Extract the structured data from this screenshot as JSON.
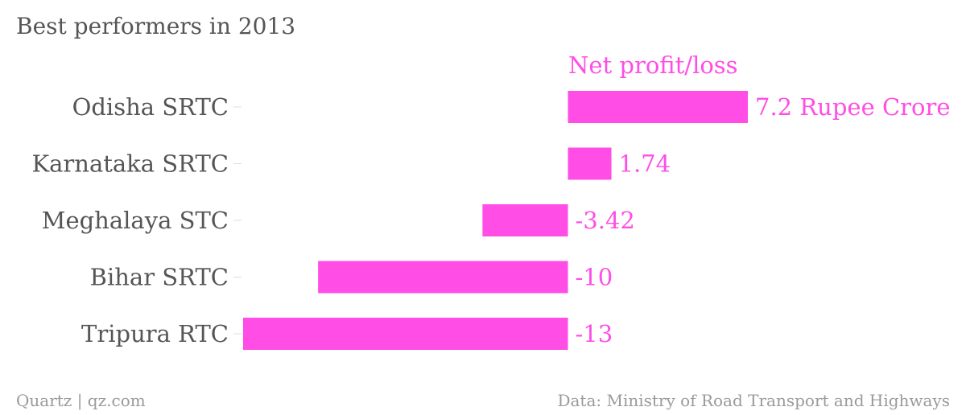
{
  "chart_data": {
    "type": "bar",
    "orientation": "horizontal",
    "title": "Best performers in 2013",
    "categories": [
      "Odisha SRTC",
      "Karnataka SRTC",
      "Meghalaya STC",
      "Bihar SRTC",
      "Tripura RTC"
    ],
    "series": [
      {
        "name": "Net profit/loss",
        "values": [
          7.2,
          1.74,
          -3.42,
          -10,
          -13
        ],
        "value_labels": [
          "7.2 Rupee Crore",
          "1.74",
          "-3.42",
          "-10",
          "-13"
        ]
      }
    ],
    "xlim": [
      -13,
      7.2
    ],
    "grid": false
  },
  "colors": {
    "bar": "#ff4de6",
    "text": "#555555",
    "footer": "#9a9a9a"
  },
  "footer": {
    "source_left": "Quartz | qz.com",
    "source_right": "Data: Ministry of Road Transport and Highways"
  }
}
